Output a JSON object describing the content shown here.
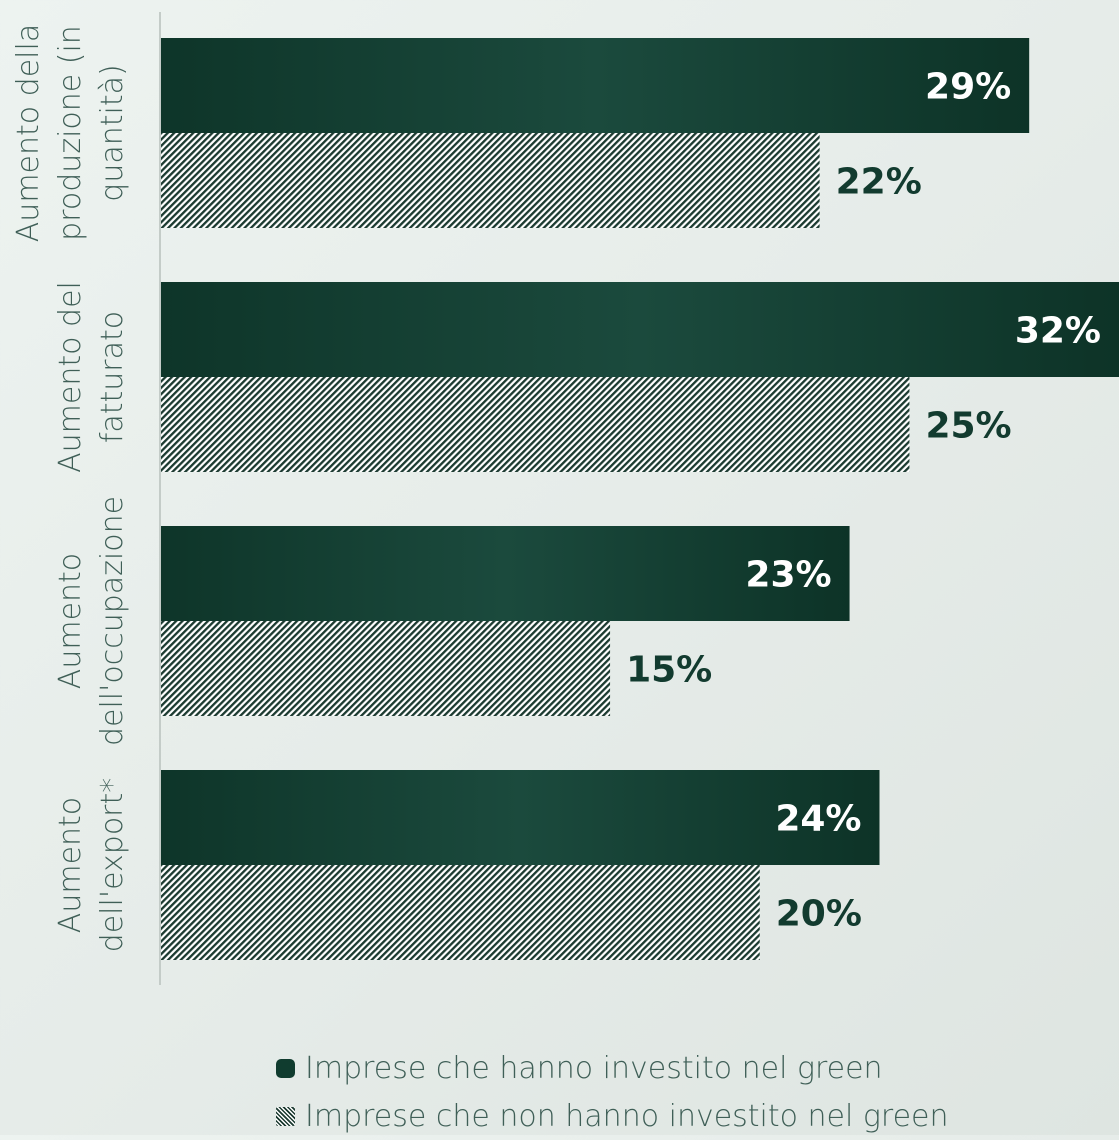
{
  "chart_data": {
    "type": "bar",
    "orientation": "horizontal",
    "categories": [
      [
        "Aumento della",
        "produzione (in",
        "quantità)"
      ],
      [
        "Aumento del",
        "fatturato"
      ],
      [
        "Aumento",
        "dell'occupazione"
      ],
      [
        "Aumento",
        "dell'export*"
      ]
    ],
    "series": [
      {
        "name": "Imprese che hanno investito nel green",
        "values": [
          29,
          32,
          23,
          24
        ],
        "labels": [
          "29%",
          "32%",
          "23%",
          "24%"
        ],
        "style": "solid"
      },
      {
        "name": "Imprese che non hanno investito nel green",
        "values": [
          22,
          25,
          15,
          20
        ],
        "labels": [
          "22%",
          "25%",
          "15%",
          "20%"
        ],
        "style": "hatched"
      }
    ],
    "xlim": [
      0,
      32
    ],
    "grid": false,
    "legend_position": "bottom"
  },
  "colors": {
    "bar_dark": "#0e3529",
    "bar_mid": "#1b4a3d",
    "hatch_dark": "#1b3a30",
    "label_dark": "#123b2f",
    "label_light": "#ffffff",
    "axis": "#c4ccc8"
  }
}
